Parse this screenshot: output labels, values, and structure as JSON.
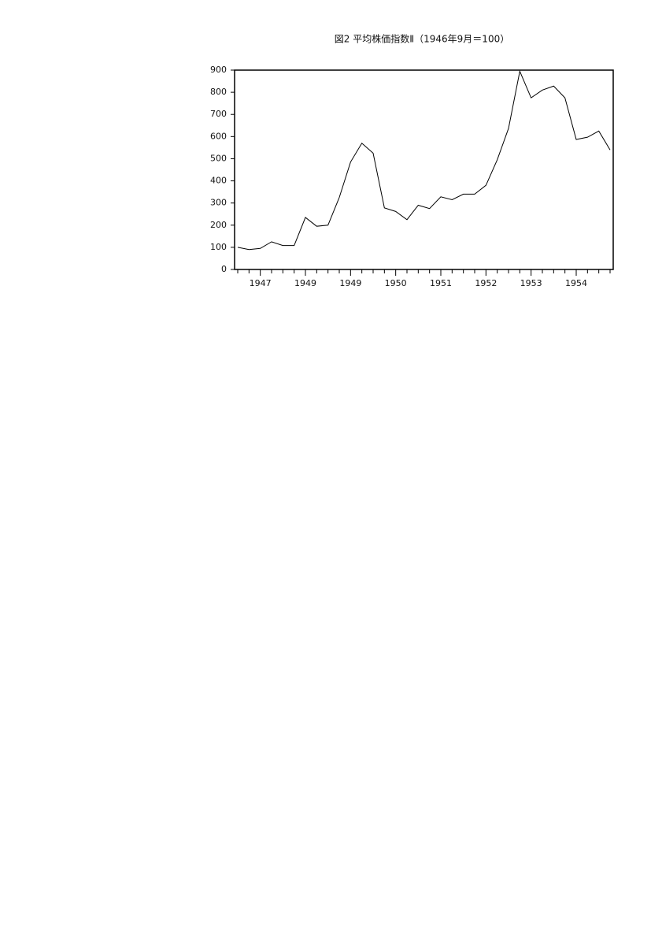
{
  "chart_data": {
    "type": "line",
    "title": "図2 平均株価指数Ⅱ（1946年9月＝100）",
    "categories": [
      null,
      null,
      "1947",
      null,
      null,
      null,
      "1949",
      null,
      null,
      null,
      "1949",
      null,
      null,
      null,
      "1950",
      null,
      null,
      null,
      "1951",
      null,
      null,
      null,
      "1952",
      null,
      null,
      null,
      "1953",
      null,
      null,
      null,
      "1954",
      null,
      null,
      null
    ],
    "series": [
      {
        "color": "#000000",
        "values": [
          100,
          90,
          95,
          125,
          108,
          108,
          235,
          195,
          200,
          325,
          485,
          570,
          525,
          278,
          262,
          225,
          290,
          275,
          328,
          315,
          340,
          340,
          380,
          495,
          637,
          895,
          775,
          810,
          828,
          775,
          587,
          597,
          625,
          540
        ]
      }
    ],
    "ylim": [
      0,
      900
    ],
    "yticks": [
      0,
      100,
      200,
      300,
      400,
      500,
      600,
      700,
      800,
      900
    ]
  }
}
